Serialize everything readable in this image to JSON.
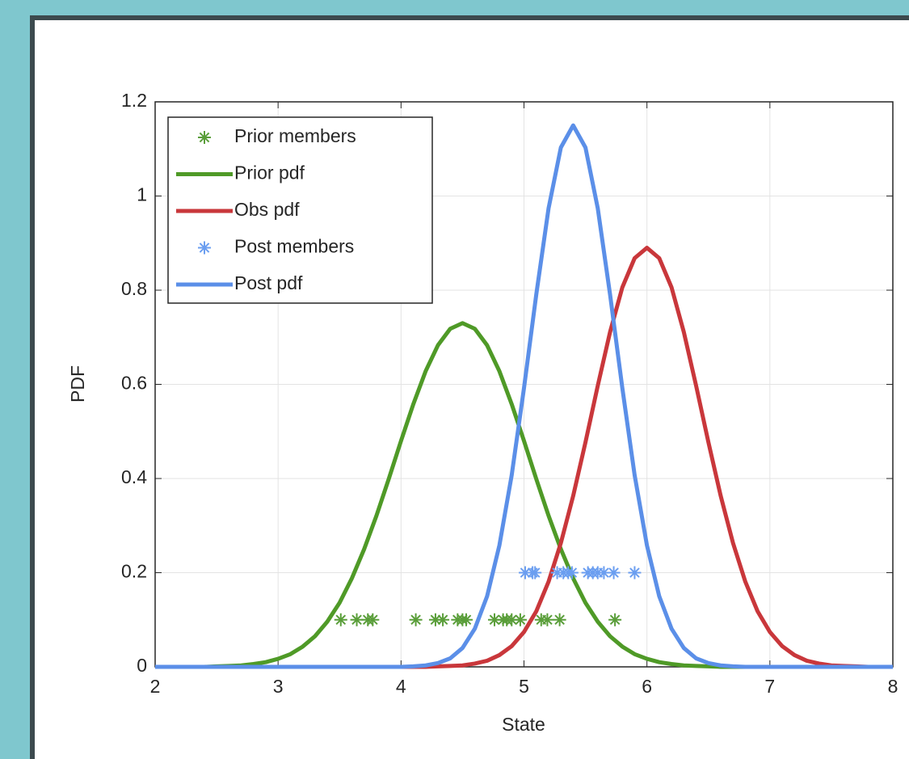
{
  "chart_data": {
    "type": "line",
    "xlabel": "State",
    "ylabel": "PDF",
    "xlim": [
      2,
      8
    ],
    "ylim": [
      0,
      1.2
    ],
    "xticks": [
      2,
      3,
      4,
      5,
      6,
      7,
      8
    ],
    "yticks": [
      0,
      0.2,
      0.4,
      0.6,
      0.8,
      1,
      1.2
    ],
    "grid": true,
    "legend": "upper left",
    "x": [
      2.0,
      2.1,
      2.2,
      2.3,
      2.4,
      2.5,
      2.6,
      2.7,
      2.8,
      2.9,
      3.0,
      3.1,
      3.2,
      3.3,
      3.4,
      3.5,
      3.6,
      3.7,
      3.8,
      3.9,
      4.0,
      4.1,
      4.2,
      4.3,
      4.4,
      4.5,
      4.6,
      4.7,
      4.8,
      4.9,
      5.0,
      5.1,
      5.2,
      5.3,
      5.4,
      5.5,
      5.6,
      5.7,
      5.8,
      5.9,
      6.0,
      6.1,
      6.2,
      6.3,
      6.4,
      6.5,
      6.6,
      6.7,
      6.8,
      6.9,
      7.0,
      7.1,
      7.2,
      7.3,
      7.4,
      7.5,
      7.6,
      7.7,
      7.8,
      7.9,
      8.0
    ],
    "series": [
      {
        "name": "Prior members",
        "mode": "markers",
        "color": "#5a9e3a",
        "x": [
          3.51,
          3.64,
          3.73,
          3.77,
          4.12,
          4.28,
          4.34,
          4.46,
          4.5,
          4.53,
          4.76,
          4.83,
          4.86,
          4.9,
          4.97,
          5.14,
          5.19,
          5.29,
          5.74
        ],
        "values": [
          0.1,
          0.1,
          0.1,
          0.1,
          0.1,
          0.1,
          0.1,
          0.1,
          0.1,
          0.1,
          0.1,
          0.1,
          0.1,
          0.1,
          0.1,
          0.1,
          0.1,
          0.1,
          0.1
        ]
      },
      {
        "name": "Prior pdf",
        "mode": "line",
        "color": "#4f9a27",
        "values": [
          0,
          0,
          0,
          0,
          0,
          0.001,
          0.002,
          0.003,
          0.006,
          0.01,
          0.017,
          0.027,
          0.043,
          0.065,
          0.096,
          0.136,
          0.188,
          0.25,
          0.321,
          0.399,
          0.48,
          0.558,
          0.628,
          0.683,
          0.718,
          0.73,
          0.718,
          0.683,
          0.628,
          0.558,
          0.48,
          0.399,
          0.321,
          0.25,
          0.188,
          0.136,
          0.096,
          0.065,
          0.043,
          0.027,
          0.017,
          0.01,
          0.006,
          0.003,
          0.002,
          0.001,
          0,
          0,
          0,
          0,
          0,
          0,
          0,
          0,
          0,
          0,
          0,
          0,
          0,
          0,
          0
        ]
      },
      {
        "name": "Obs pdf",
        "mode": "line",
        "color": "#c9373b",
        "values": [
          0,
          0,
          0,
          0,
          0,
          0,
          0,
          0,
          0,
          0,
          0,
          0,
          0,
          0,
          0,
          0,
          0,
          0,
          0,
          0,
          0,
          0,
          0,
          0.001,
          0.002,
          0.003,
          0.007,
          0.013,
          0.025,
          0.044,
          0.074,
          0.118,
          0.181,
          0.263,
          0.363,
          0.477,
          0.597,
          0.711,
          0.806,
          0.868,
          0.89,
          0.868,
          0.806,
          0.711,
          0.597,
          0.477,
          0.363,
          0.263,
          0.181,
          0.118,
          0.074,
          0.044,
          0.025,
          0.013,
          0.007,
          0.003,
          0.002,
          0.001,
          0,
          0,
          0
        ]
      },
      {
        "name": "Post members",
        "mode": "markers",
        "color": "#6b9ef0",
        "x": [
          5.01,
          5.07,
          5.09,
          5.27,
          5.32,
          5.36,
          5.39,
          5.52,
          5.56,
          5.6,
          5.65,
          5.73,
          5.9
        ],
        "values": [
          0.2,
          0.2,
          0.2,
          0.2,
          0.2,
          0.2,
          0.2,
          0.2,
          0.2,
          0.2,
          0.2,
          0.2,
          0.2
        ]
      },
      {
        "name": "Post pdf",
        "mode": "line",
        "color": "#5b8fe8",
        "values": [
          0,
          0,
          0,
          0,
          0,
          0,
          0,
          0,
          0,
          0,
          0,
          0,
          0,
          0,
          0,
          0,
          0,
          0,
          0,
          0,
          0,
          0.001,
          0.003,
          0.008,
          0.018,
          0.04,
          0.081,
          0.15,
          0.258,
          0.407,
          0.592,
          0.791,
          0.974,
          1.103,
          1.15,
          1.103,
          0.974,
          0.791,
          0.592,
          0.407,
          0.258,
          0.15,
          0.081,
          0.04,
          0.018,
          0.008,
          0.003,
          0.001,
          0,
          0,
          0,
          0,
          0,
          0,
          0,
          0,
          0,
          0,
          0,
          0,
          0
        ]
      }
    ]
  }
}
